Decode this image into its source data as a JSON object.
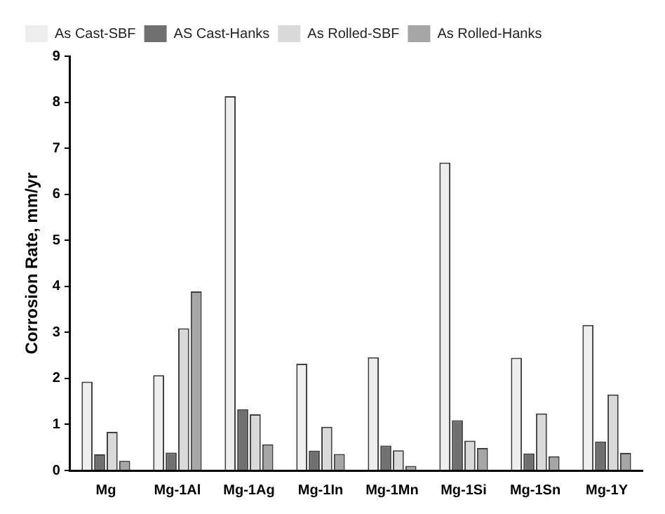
{
  "chart_data": {
    "type": "bar",
    "ylabel": "Corrosion Rate, mm/yr",
    "categories": [
      "Mg",
      "Mg-1Al",
      "Mg-1Ag",
      "Mg-1In",
      "Mg-1Mn",
      "Mg-1Si",
      "Mg-1Sn",
      "Mg-1Y"
    ],
    "series": [
      {
        "name": "As Cast-SBF",
        "color": "#eeeeee",
        "values": [
          1.93,
          2.07,
          8.13,
          2.32,
          2.46,
          6.69,
          2.45,
          3.16
        ]
      },
      {
        "name": "AS Cast-Hanks",
        "color": "#707070",
        "values": [
          0.35,
          0.39,
          1.33,
          0.43,
          0.54,
          1.09,
          0.37,
          0.63
        ]
      },
      {
        "name": "As Rolled-SBF",
        "color": "#d9d9d9",
        "values": [
          0.84,
          3.09,
          1.22,
          0.95,
          0.44,
          0.65,
          1.24,
          1.65
        ]
      },
      {
        "name": "As Rolled-Hanks",
        "color": "#a6a6a6",
        "values": [
          0.21,
          3.89,
          0.57,
          0.36,
          0.1,
          0.49,
          0.31,
          0.38
        ]
      }
    ],
    "ylim": [
      0,
      9
    ],
    "yticks": [
      0,
      1,
      2,
      3,
      4,
      5,
      6,
      7,
      8,
      9
    ],
    "grid": false,
    "legend": "top left"
  }
}
